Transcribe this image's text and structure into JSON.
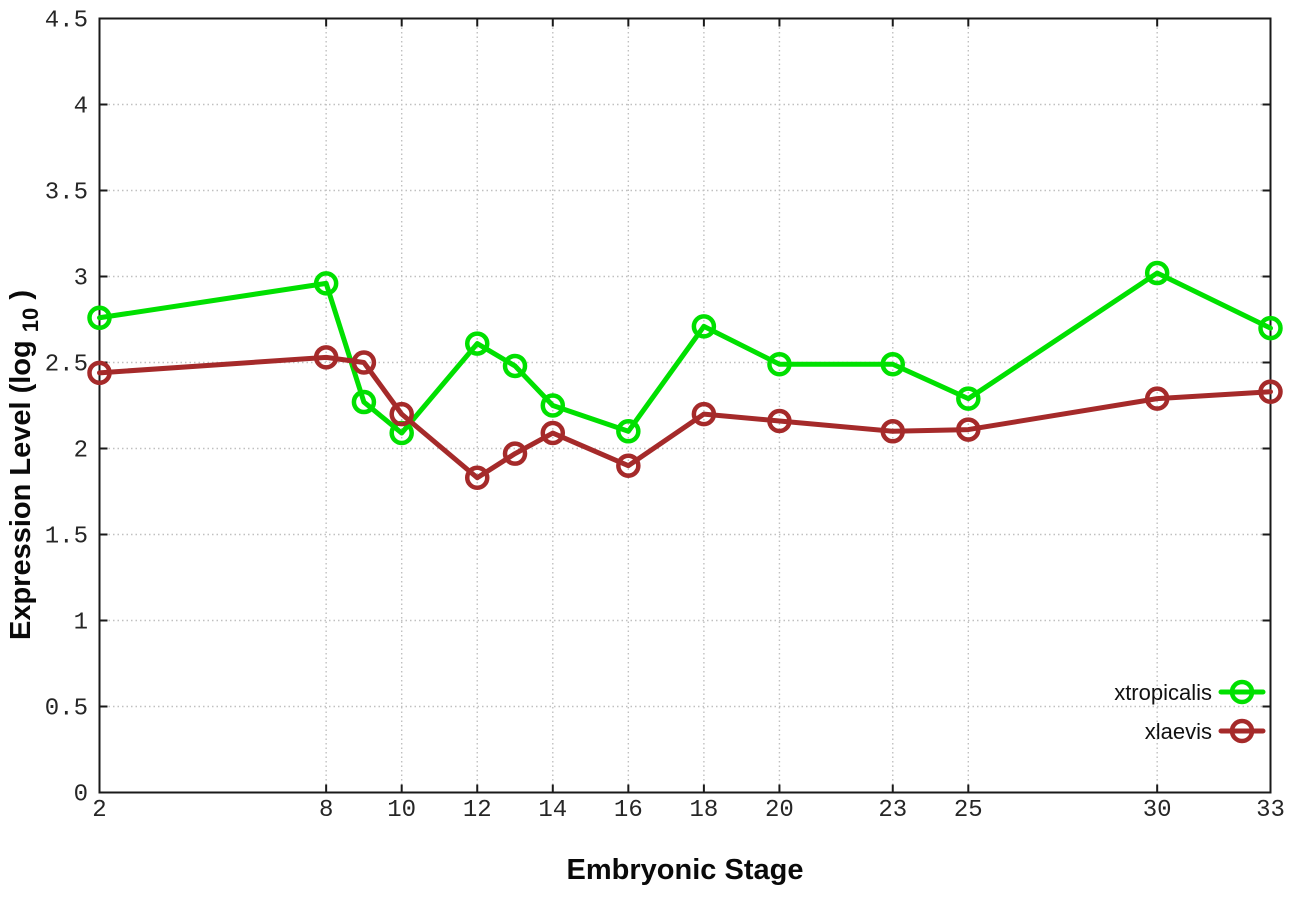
{
  "chart_data": {
    "type": "line",
    "title": "",
    "xlabel": "Embryonic Stage",
    "ylabel": "Expression Level (log10)",
    "ylabel_parts": [
      "Expression Level (log",
      "10",
      ")"
    ],
    "x": [
      2,
      8,
      9,
      10,
      12,
      13,
      14,
      16,
      18,
      20,
      23,
      25,
      30,
      33
    ],
    "series": [
      {
        "name": "xtropicalis",
        "color": "#00e000",
        "values": [
          2.76,
          2.96,
          2.27,
          2.09,
          2.61,
          2.48,
          2.25,
          2.1,
          2.71,
          2.49,
          2.49,
          2.29,
          3.02,
          2.7
        ]
      },
      {
        "name": "xlaevis",
        "color": "#a52a2a",
        "values": [
          2.44,
          2.53,
          2.5,
          2.2,
          1.83,
          1.97,
          2.09,
          1.9,
          2.2,
          2.16,
          2.1,
          2.11,
          2.29,
          2.33
        ]
      }
    ],
    "xlim": [
      2,
      33
    ],
    "ylim": [
      0,
      4.5
    ],
    "xtick_labels": [
      "2",
      "8",
      "10",
      "12",
      "14",
      "16",
      "18",
      "20",
      "23",
      "25",
      "30",
      "33"
    ],
    "xtick_values": [
      2,
      8,
      10,
      12,
      14,
      16,
      18,
      20,
      23,
      25,
      30,
      33
    ],
    "ytick_labels": [
      "0",
      "0.5",
      "1",
      "1.5",
      "2",
      "2.5",
      "3",
      "3.5",
      "4",
      "4.5"
    ],
    "ytick_values": [
      0,
      0.5,
      1,
      1.5,
      2,
      2.5,
      3,
      3.5,
      4,
      4.5
    ],
    "grid": true,
    "legend_position": "inside-bottom-right",
    "colors": {
      "background": "#ffffff",
      "border": "#1a1a1a",
      "grid": "#c0c0c0",
      "tick_text": "#262626"
    }
  }
}
